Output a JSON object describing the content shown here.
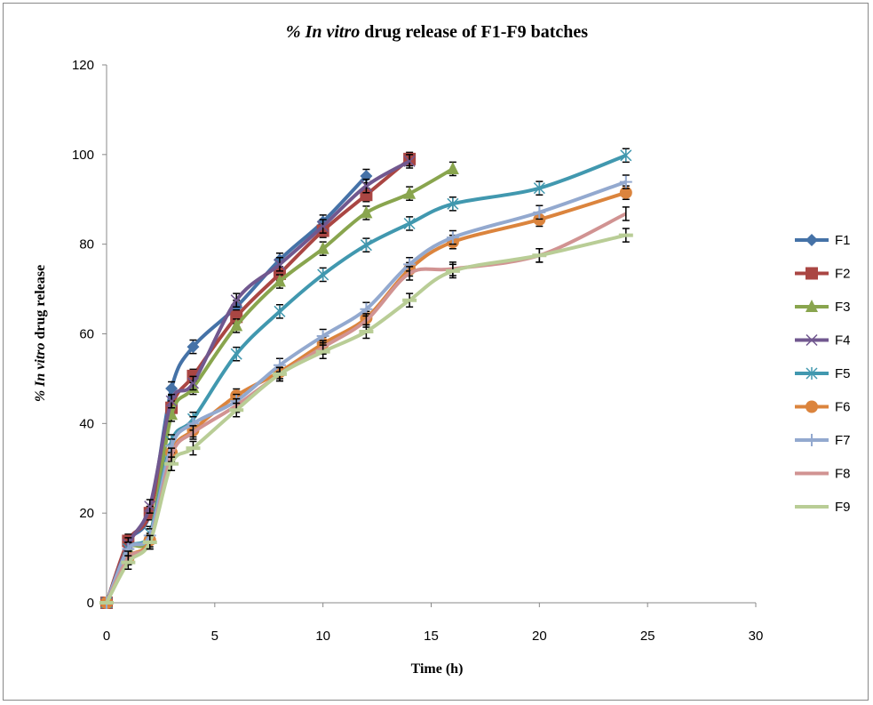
{
  "chart_data": {
    "type": "line",
    "title_italic": "% In vitro",
    "title_rest": " drug release of F1-F9 batches",
    "xlabel": "Time (h)",
    "ylabel_italic": "% In vitro",
    "ylabel_rest": "  drug release",
    "xlim": [
      0,
      30
    ],
    "ylim": [
      0,
      120
    ],
    "xticks": [
      0,
      5,
      10,
      15,
      20,
      25,
      30
    ],
    "yticks": [
      0,
      20,
      40,
      60,
      80,
      100,
      120
    ],
    "grid": false,
    "legend_position": "right",
    "smooth": true,
    "error_bars": 1.5,
    "series": [
      {
        "name": "F1",
        "color": "#4572A7",
        "marker": "diamond",
        "x": [
          0,
          1,
          2,
          3,
          4,
          6,
          8,
          10,
          12
        ],
        "y": [
          0,
          13.5,
          20,
          47.8,
          57.1,
          66,
          76.5,
          85,
          95.2
        ]
      },
      {
        "name": "F2",
        "color": "#AA4643",
        "marker": "square",
        "x": [
          0,
          1,
          2,
          3,
          4,
          6,
          8,
          10,
          12,
          14
        ],
        "y": [
          0,
          13.8,
          20,
          43.5,
          50.6,
          63.8,
          73.4,
          83,
          91,
          99
        ]
      },
      {
        "name": "F3",
        "color": "#89A54E",
        "marker": "triangle",
        "x": [
          0,
          1,
          2,
          3,
          4,
          6,
          8,
          10,
          12,
          14,
          16
        ],
        "y": [
          0,
          12,
          15,
          42,
          48,
          61.8,
          71.7,
          79,
          87,
          91.3,
          96.8
        ]
      },
      {
        "name": "F4",
        "color": "#71588F",
        "marker": "x",
        "x": [
          0,
          1,
          2,
          3,
          4,
          6,
          8,
          10,
          12,
          14
        ],
        "y": [
          0,
          13,
          21.5,
          45,
          49,
          67.5,
          75.5,
          84,
          93,
          98.5
        ]
      },
      {
        "name": "F5",
        "color": "#4198AF",
        "marker": "star",
        "x": [
          0,
          1,
          2,
          3,
          4,
          6,
          8,
          10,
          12,
          14,
          16,
          20,
          24
        ],
        "y": [
          0,
          12,
          15.5,
          36,
          41,
          55.5,
          65,
          73.2,
          79.8,
          84.6,
          89,
          92.5,
          99.8
        ]
      },
      {
        "name": "F6",
        "color": "#DB843D",
        "marker": "circle",
        "x": [
          0,
          1,
          2,
          3,
          4,
          6,
          8,
          10,
          12,
          14,
          16,
          20,
          24
        ],
        "y": [
          0,
          10,
          14,
          33.5,
          38.5,
          46.2,
          51.5,
          57.8,
          63.5,
          74.4,
          80.5,
          85.5,
          91.5
        ]
      },
      {
        "name": "F7",
        "color": "#93A9CF",
        "marker": "plus",
        "x": [
          0,
          1,
          2,
          3,
          4,
          6,
          8,
          10,
          12,
          14,
          16,
          20,
          24
        ],
        "y": [
          0,
          12,
          15,
          35,
          40,
          45,
          53,
          59.5,
          65.5,
          75.5,
          81.5,
          87.1,
          93.9
        ]
      },
      {
        "name": "F8",
        "color": "#D19392",
        "marker": "none",
        "x": [
          0,
          1,
          2,
          3,
          4,
          6,
          8,
          10,
          12,
          14,
          16,
          20,
          24
        ],
        "y": [
          0,
          10,
          13.5,
          33,
          38,
          44,
          51,
          57,
          63,
          73.5,
          74.5,
          77.5,
          86.8
        ]
      },
      {
        "name": "F9",
        "color": "#B9CD96",
        "marker": "dash",
        "x": [
          0,
          1,
          2,
          3,
          4,
          6,
          8,
          10,
          12,
          14,
          16,
          20,
          24
        ],
        "y": [
          0,
          9,
          13.5,
          31,
          34.5,
          43,
          51,
          56,
          60.5,
          67.5,
          74,
          77.5,
          82
        ]
      }
    ]
  }
}
